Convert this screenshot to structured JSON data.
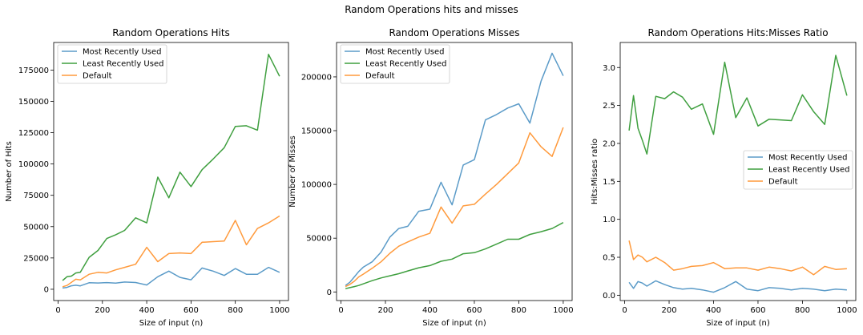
{
  "figure": {
    "suptitle": "Random Operations hits and misses"
  },
  "legend_entries": [
    {
      "label": "Most Recently Used",
      "color": "#5b9bc8"
    },
    {
      "label": "Least Recently Used",
      "color": "#3f9f3f"
    },
    {
      "label": "Default",
      "color": "#ff9a3c"
    }
  ],
  "chart_data": [
    {
      "type": "line",
      "title": "Random Operations Hits",
      "xlabel": "Size of input (n)",
      "ylabel": "Number of Hits",
      "xlim": [
        -20,
        1040
      ],
      "ylim": [
        -9000,
        197000
      ],
      "xticks": [
        0,
        200,
        400,
        600,
        800,
        1000
      ],
      "yticks": [
        0,
        25000,
        50000,
        75000,
        100000,
        125000,
        150000,
        175000
      ],
      "legend_position": "top-left",
      "x": [
        20,
        40,
        60,
        80,
        100,
        140,
        180,
        220,
        260,
        300,
        350,
        400,
        450,
        500,
        550,
        600,
        650,
        700,
        750,
        800,
        850,
        900,
        950,
        1000
      ],
      "series": [
        {
          "name": "Most Recently Used",
          "color": "#5b9bc8",
          "values": [
            1000,
            1500,
            2800,
            3200,
            2700,
            5200,
            5000,
            5300,
            4900,
            5800,
            5400,
            3400,
            10000,
            14500,
            9500,
            7600,
            17000,
            14500,
            11000,
            16500,
            12000,
            12000,
            17500,
            13500
          ]
        },
        {
          "name": "Least Recently Used",
          "color": "#3f9f3f",
          "values": [
            7000,
            10000,
            10500,
            13000,
            13500,
            25500,
            31000,
            40500,
            43500,
            47000,
            57000,
            53000,
            89500,
            73000,
            93500,
            82000,
            95500,
            104000,
            113000,
            130000,
            130500,
            127000,
            187500,
            170000
          ]
        },
        {
          "name": "Default",
          "color": "#ff9a3c",
          "values": [
            2000,
            3000,
            5500,
            8000,
            7500,
            12000,
            13500,
            13000,
            15500,
            17500,
            20000,
            33500,
            22000,
            28500,
            29000,
            28500,
            37500,
            38000,
            38500,
            55000,
            35500,
            48500,
            53000,
            58500
          ]
        }
      ]
    },
    {
      "type": "line",
      "title": "Random Operations Misses",
      "xlabel": "Size of input (n)",
      "ylabel": "Number of Misses",
      "xlim": [
        -20,
        1040
      ],
      "ylim": [
        -8000,
        232000
      ],
      "xticks": [
        0,
        200,
        400,
        600,
        800,
        1000
      ],
      "yticks": [
        0,
        50000,
        100000,
        150000,
        200000
      ],
      "legend_position": "top-left",
      "x": [
        20,
        40,
        60,
        80,
        100,
        140,
        180,
        220,
        260,
        300,
        350,
        400,
        450,
        500,
        550,
        600,
        650,
        700,
        750,
        800,
        850,
        900,
        950,
        1000
      ],
      "series": [
        {
          "name": "Most Recently Used",
          "color": "#5b9bc8",
          "values": [
            6000,
            9000,
            14000,
            19000,
            23000,
            28000,
            37000,
            51000,
            59000,
            61000,
            75000,
            77000,
            102000,
            81000,
            118000,
            123000,
            160000,
            165000,
            171000,
            175000,
            157000,
            196000,
            222000,
            201000
          ]
        },
        {
          "name": "Least Recently Used",
          "color": "#3f9f3f",
          "values": [
            3000,
            4000,
            5000,
            6000,
            7500,
            10500,
            13000,
            15000,
            17000,
            19500,
            22500,
            24500,
            28500,
            30500,
            35500,
            36500,
            40000,
            44500,
            49000,
            49000,
            53500,
            56000,
            59000,
            64500
          ]
        },
        {
          "name": "Default",
          "color": "#ff9a3c",
          "values": [
            5000,
            7000,
            10000,
            14000,
            16500,
            22000,
            28000,
            36000,
            42500,
            46500,
            51000,
            54500,
            79000,
            64000,
            80000,
            81500,
            91000,
            100000,
            110000,
            120000,
            148000,
            135000,
            126000,
            153000
          ]
        }
      ]
    },
    {
      "type": "line",
      "title": "Random Operations Hits:Misses Ratio",
      "xlabel": "Size of input (n)",
      "ylabel": "Hits:Misses ratio",
      "xlim": [
        -20,
        1040
      ],
      "ylim": [
        -0.07,
        3.33
      ],
      "xticks": [
        0,
        200,
        400,
        600,
        800,
        1000
      ],
      "yticks": [
        0.0,
        0.5,
        1.0,
        1.5,
        2.0,
        2.5,
        3.0
      ],
      "ytick_labels": [
        "0.0",
        "0.5",
        "1.0",
        "1.5",
        "2.0",
        "2.5",
        "3.0"
      ],
      "legend_position": "center-right",
      "x": [
        20,
        40,
        60,
        80,
        100,
        140,
        180,
        220,
        260,
        300,
        350,
        400,
        450,
        500,
        550,
        600,
        650,
        700,
        750,
        800,
        850,
        900,
        950,
        1000
      ],
      "series": [
        {
          "name": "Most Recently Used",
          "color": "#5b9bc8",
          "values": [
            0.17,
            0.09,
            0.18,
            0.16,
            0.12,
            0.19,
            0.14,
            0.1,
            0.08,
            0.09,
            0.07,
            0.04,
            0.1,
            0.18,
            0.08,
            0.06,
            0.1,
            0.09,
            0.07,
            0.09,
            0.08,
            0.06,
            0.08,
            0.07
          ]
        },
        {
          "name": "Least Recently Used",
          "color": "#3f9f3f",
          "values": [
            2.17,
            2.63,
            2.2,
            2.04,
            1.86,
            2.62,
            2.59,
            2.68,
            2.61,
            2.45,
            2.52,
            2.12,
            3.07,
            2.34,
            2.6,
            2.23,
            2.32,
            2.31,
            2.3,
            2.64,
            2.42,
            2.25,
            3.16,
            2.63
          ]
        },
        {
          "name": "Default",
          "color": "#ff9a3c",
          "values": [
            0.72,
            0.47,
            0.53,
            0.5,
            0.44,
            0.5,
            0.43,
            0.33,
            0.35,
            0.38,
            0.39,
            0.43,
            0.35,
            0.36,
            0.36,
            0.33,
            0.37,
            0.35,
            0.32,
            0.37,
            0.27,
            0.38,
            0.34,
            0.35
          ]
        }
      ]
    }
  ]
}
